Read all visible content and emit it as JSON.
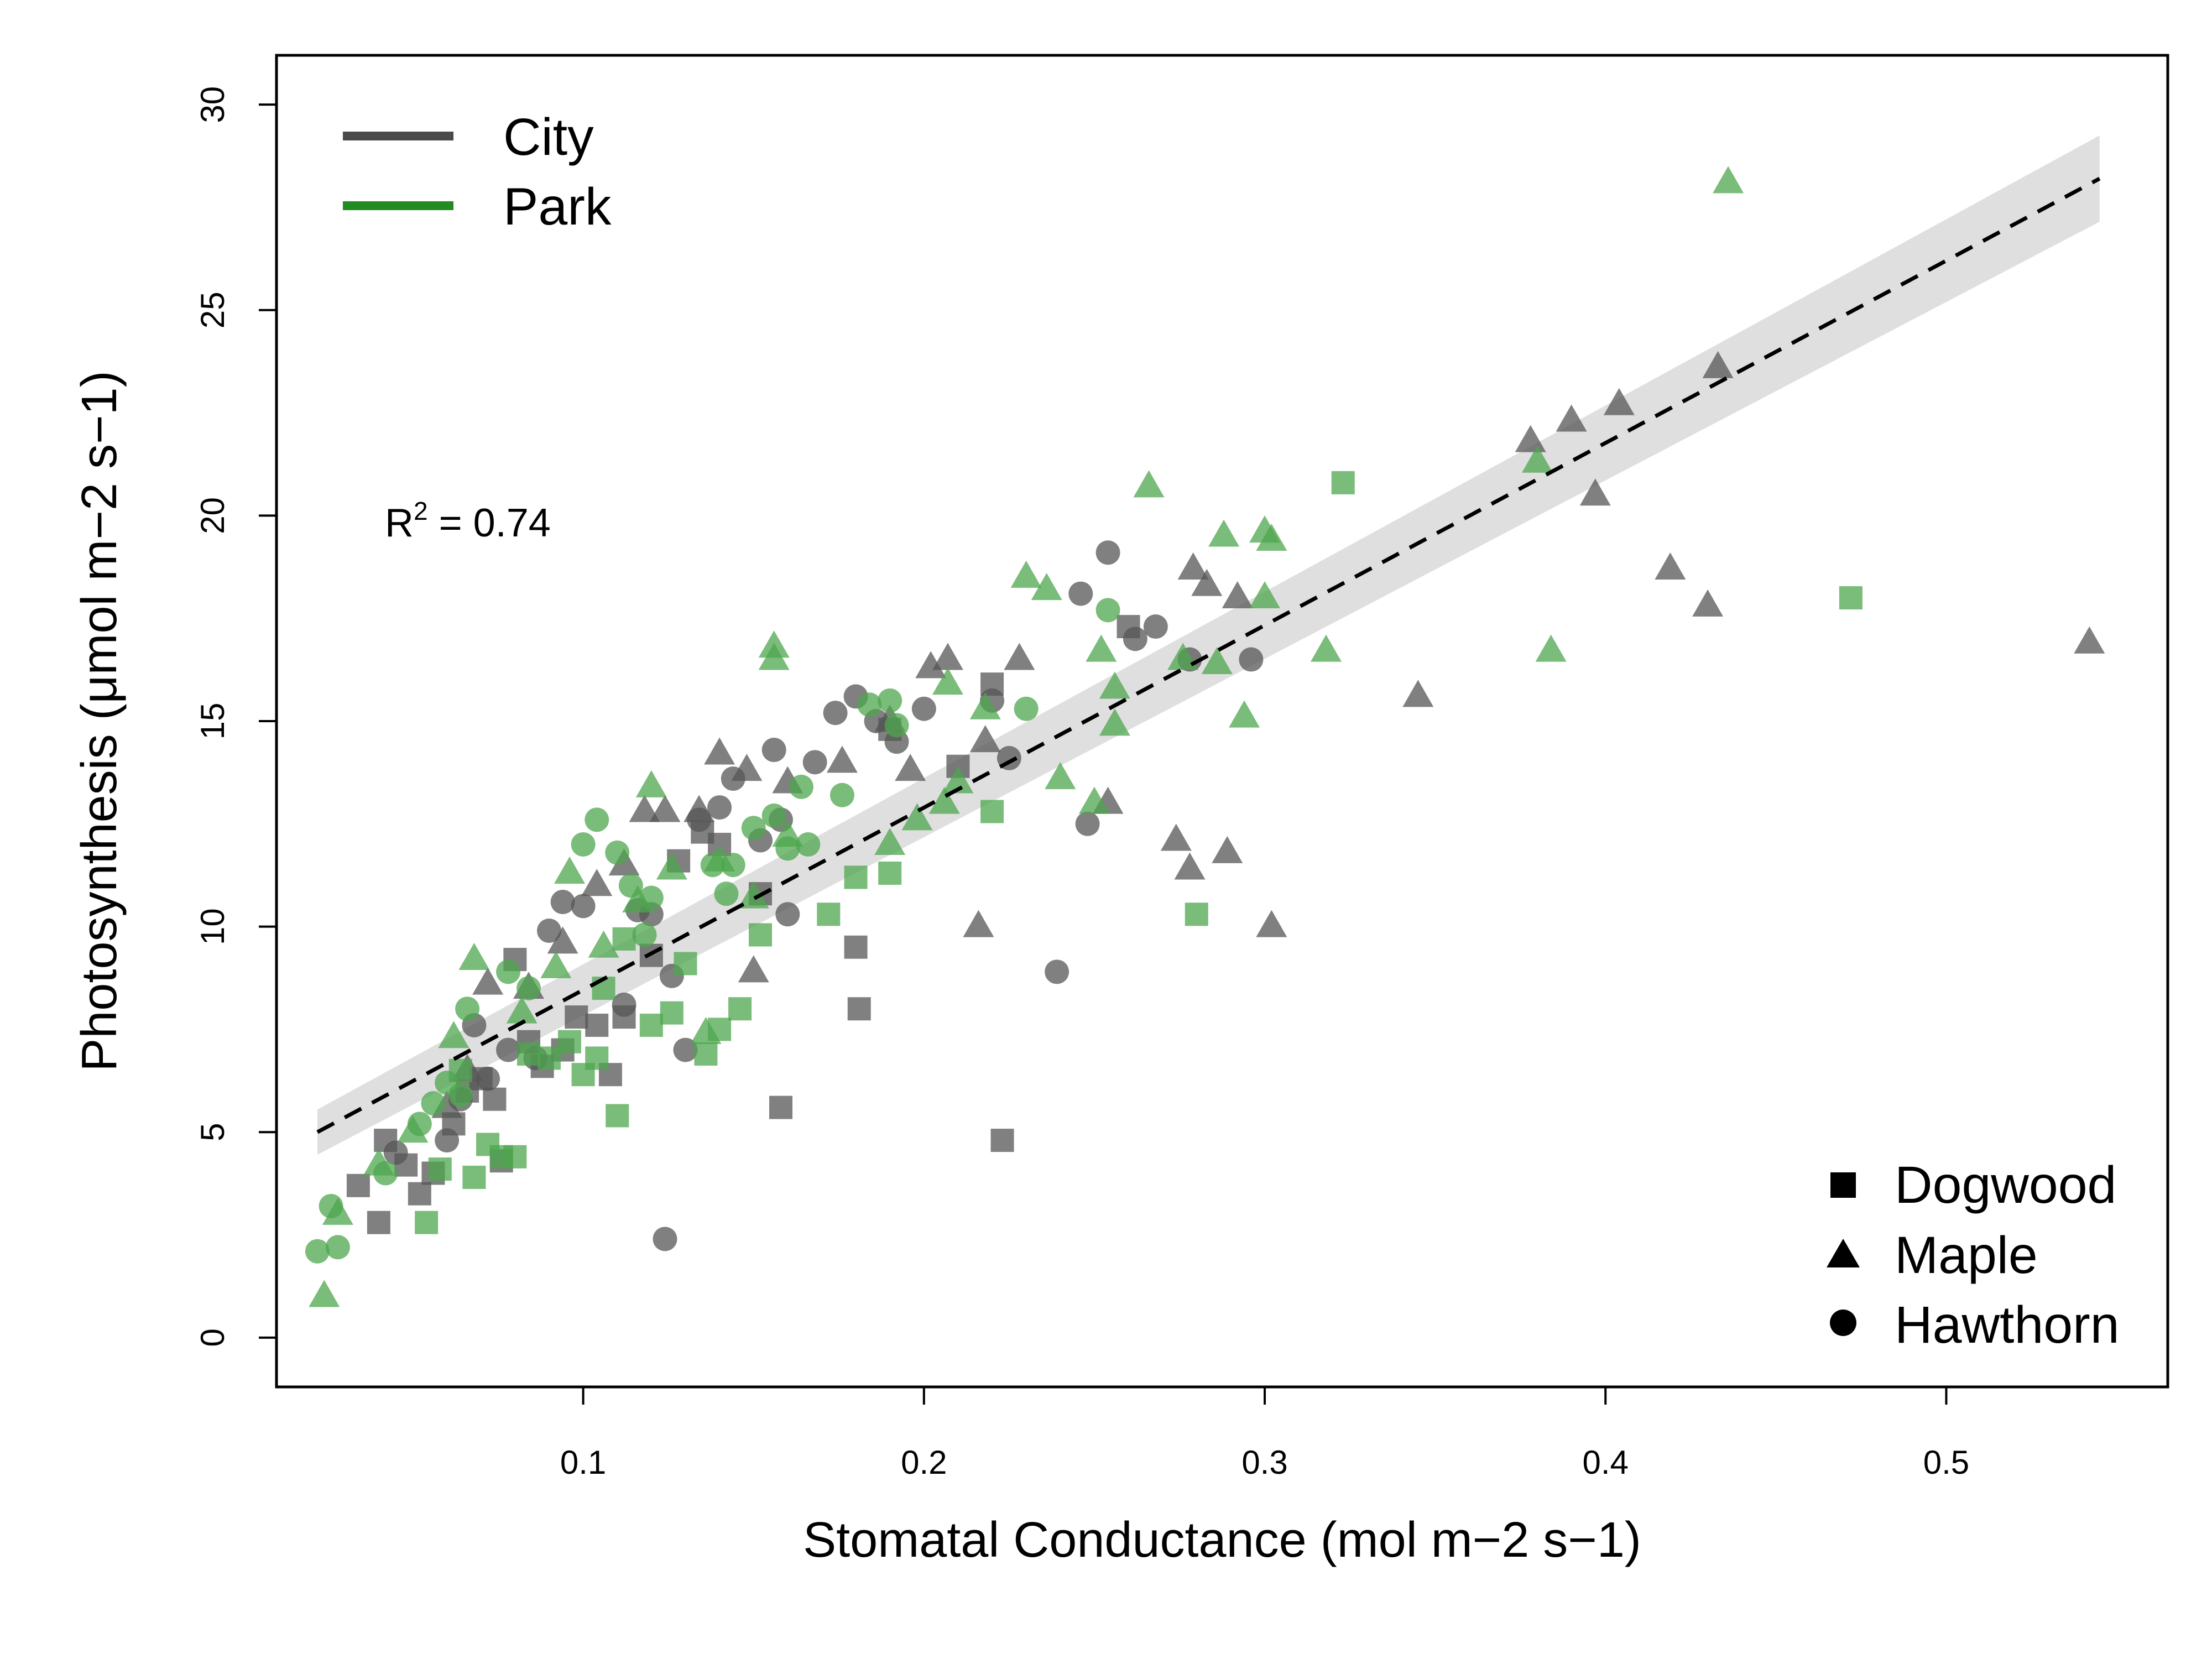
{
  "chart_data": {
    "type": "scatter",
    "xlabel": "Stomatal Conductance  (mol m−2 s−1)",
    "ylabel": "Photosynthesis  (μmol m−2 s−1)",
    "xlim": [
      0.01,
      0.565
    ],
    "ylim": [
      -1.2,
      31.2
    ],
    "xticks": [
      0.1,
      0.2,
      0.3,
      0.4,
      0.5
    ],
    "yticks": [
      0,
      5,
      10,
      15,
      20,
      25,
      30
    ],
    "xtick_labels": [
      "0.1",
      "0.2",
      "0.3",
      "0.4",
      "0.5"
    ],
    "ytick_labels": [
      "0",
      "5",
      "10",
      "15",
      "20",
      "25",
      "30"
    ],
    "grid": false,
    "annotation": {
      "label": "R",
      "sup": "2",
      "rest": " =  0.74"
    },
    "fit_line": {
      "x": [
        0.022,
        0.545
      ],
      "y": [
        5.0,
        28.2
      ],
      "style": "dashed",
      "ci_half_width": [
        0.55,
        1.05
      ]
    },
    "legend_sites": {
      "placement": "top-left",
      "entries": [
        {
          "label": "City",
          "color": "#4a4a4a"
        },
        {
          "label": "Park",
          "color": "#228b22"
        }
      ]
    },
    "legend_species": {
      "placement": "bottom-right",
      "entries": [
        {
          "label": "Dogwood",
          "shape": "square"
        },
        {
          "label": "Maple",
          "shape": "triangle"
        },
        {
          "label": "Hawthorn",
          "shape": "circle"
        }
      ]
    },
    "colors": {
      "City": "#555555",
      "Park": "#4ea64e",
      "band": "#d9d9d9",
      "line": "#000000"
    },
    "series": [
      {
        "site": "City",
        "species": "Dogwood",
        "points": [
          [
            0.034,
            3.7
          ],
          [
            0.04,
            2.8
          ],
          [
            0.042,
            4.8
          ],
          [
            0.048,
            4.2
          ],
          [
            0.052,
            3.5
          ],
          [
            0.056,
            4.0
          ],
          [
            0.062,
            5.2
          ],
          [
            0.066,
            6.0
          ],
          [
            0.07,
            6.3
          ],
          [
            0.074,
            5.8
          ],
          [
            0.076,
            4.3
          ],
          [
            0.08,
            9.2
          ],
          [
            0.084,
            7.2
          ],
          [
            0.088,
            6.6
          ],
          [
            0.094,
            7.0
          ],
          [
            0.098,
            7.8
          ],
          [
            0.104,
            7.6
          ],
          [
            0.108,
            6.4
          ],
          [
            0.112,
            7.8
          ],
          [
            0.12,
            9.3
          ],
          [
            0.128,
            11.6
          ],
          [
            0.135,
            12.3
          ],
          [
            0.14,
            12.0
          ],
          [
            0.152,
            10.8
          ],
          [
            0.158,
            5.6
          ],
          [
            0.18,
            9.5
          ],
          [
            0.181,
            8.0
          ],
          [
            0.19,
            14.8
          ],
          [
            0.21,
            13.9
          ],
          [
            0.22,
            15.9
          ],
          [
            0.223,
            4.8
          ],
          [
            0.26,
            17.3
          ]
        ]
      },
      {
        "site": "City",
        "species": "Maple",
        "points": [
          [
            0.06,
            5.6
          ],
          [
            0.066,
            6.5
          ],
          [
            0.072,
            8.6
          ],
          [
            0.084,
            8.5
          ],
          [
            0.094,
            9.6
          ],
          [
            0.104,
            11.0
          ],
          [
            0.112,
            11.5
          ],
          [
            0.118,
            12.8
          ],
          [
            0.124,
            12.8
          ],
          [
            0.134,
            12.8
          ],
          [
            0.14,
            14.2
          ],
          [
            0.148,
            13.8
          ],
          [
            0.15,
            8.9
          ],
          [
            0.16,
            13.5
          ],
          [
            0.176,
            14.0
          ],
          [
            0.19,
            15.0
          ],
          [
            0.196,
            13.8
          ],
          [
            0.202,
            16.3
          ],
          [
            0.207,
            16.5
          ],
          [
            0.216,
            10.0
          ],
          [
            0.218,
            14.5
          ],
          [
            0.228,
            16.5
          ],
          [
            0.254,
            13.0
          ],
          [
            0.274,
            12.1
          ],
          [
            0.278,
            11.4
          ],
          [
            0.279,
            18.7
          ],
          [
            0.283,
            18.3
          ],
          [
            0.289,
            11.8
          ],
          [
            0.292,
            18.0
          ],
          [
            0.302,
            10.0
          ],
          [
            0.345,
            15.6
          ],
          [
            0.378,
            21.8
          ],
          [
            0.39,
            22.3
          ],
          [
            0.397,
            20.5
          ],
          [
            0.404,
            22.7
          ],
          [
            0.419,
            18.7
          ],
          [
            0.43,
            17.8
          ],
          [
            0.433,
            23.6
          ],
          [
            0.542,
            16.9
          ]
        ]
      },
      {
        "site": "City",
        "species": "Hawthorn",
        "points": [
          [
            0.045,
            4.5
          ],
          [
            0.06,
            4.8
          ],
          [
            0.064,
            5.8
          ],
          [
            0.068,
            7.6
          ],
          [
            0.072,
            6.3
          ],
          [
            0.078,
            7.0
          ],
          [
            0.086,
            6.8
          ],
          [
            0.09,
            9.9
          ],
          [
            0.094,
            10.6
          ],
          [
            0.1,
            10.5
          ],
          [
            0.112,
            8.1
          ],
          [
            0.116,
            10.4
          ],
          [
            0.12,
            10.3
          ],
          [
            0.124,
            2.4
          ],
          [
            0.126,
            8.8
          ],
          [
            0.13,
            7.0
          ],
          [
            0.134,
            12.6
          ],
          [
            0.14,
            12.9
          ],
          [
            0.144,
            13.6
          ],
          [
            0.152,
            12.1
          ],
          [
            0.156,
            14.3
          ],
          [
            0.158,
            12.6
          ],
          [
            0.16,
            10.3
          ],
          [
            0.168,
            14.0
          ],
          [
            0.174,
            15.2
          ],
          [
            0.18,
            15.6
          ],
          [
            0.186,
            15.0
          ],
          [
            0.192,
            14.5
          ],
          [
            0.2,
            15.3
          ],
          [
            0.22,
            15.5
          ],
          [
            0.225,
            14.1
          ],
          [
            0.239,
            8.9
          ],
          [
            0.246,
            18.1
          ],
          [
            0.248,
            12.5
          ],
          [
            0.254,
            19.1
          ],
          [
            0.262,
            17.0
          ],
          [
            0.268,
            17.3
          ],
          [
            0.278,
            16.5
          ],
          [
            0.296,
            16.5
          ]
        ]
      },
      {
        "site": "Park",
        "species": "Dogwood",
        "points": [
          [
            0.054,
            2.8
          ],
          [
            0.058,
            4.1
          ],
          [
            0.064,
            6.5
          ],
          [
            0.068,
            3.9
          ],
          [
            0.072,
            4.7
          ],
          [
            0.076,
            4.4
          ],
          [
            0.08,
            4.4
          ],
          [
            0.084,
            6.9
          ],
          [
            0.09,
            6.8
          ],
          [
            0.096,
            7.2
          ],
          [
            0.1,
            6.4
          ],
          [
            0.104,
            6.8
          ],
          [
            0.106,
            8.5
          ],
          [
            0.11,
            5.4
          ],
          [
            0.112,
            9.7
          ],
          [
            0.12,
            7.6
          ],
          [
            0.126,
            7.9
          ],
          [
            0.13,
            9.1
          ],
          [
            0.136,
            6.9
          ],
          [
            0.14,
            7.5
          ],
          [
            0.146,
            8.0
          ],
          [
            0.152,
            9.8
          ],
          [
            0.172,
            10.3
          ],
          [
            0.18,
            11.2
          ],
          [
            0.19,
            11.3
          ],
          [
            0.22,
            12.8
          ],
          [
            0.28,
            10.3
          ],
          [
            0.323,
            20.8
          ],
          [
            0.472,
            18.0
          ]
        ]
      },
      {
        "site": "Park",
        "species": "Maple",
        "points": [
          [
            0.024,
            1.0
          ],
          [
            0.028,
            3.0
          ],
          [
            0.04,
            4.2
          ],
          [
            0.05,
            5.0
          ],
          [
            0.062,
            7.3
          ],
          [
            0.068,
            9.2
          ],
          [
            0.082,
            7.9
          ],
          [
            0.092,
            9.0
          ],
          [
            0.096,
            11.3
          ],
          [
            0.106,
            9.5
          ],
          [
            0.116,
            10.6
          ],
          [
            0.12,
            13.4
          ],
          [
            0.126,
            11.4
          ],
          [
            0.136,
            7.4
          ],
          [
            0.14,
            11.6
          ],
          [
            0.15,
            10.7
          ],
          [
            0.156,
            16.5
          ],
          [
            0.156,
            16.8
          ],
          [
            0.16,
            12.2
          ],
          [
            0.19,
            12.0
          ],
          [
            0.198,
            12.6
          ],
          [
            0.206,
            13.0
          ],
          [
            0.207,
            15.9
          ],
          [
            0.21,
            13.5
          ],
          [
            0.218,
            15.3
          ],
          [
            0.23,
            18.5
          ],
          [
            0.236,
            18.2
          ],
          [
            0.24,
            13.6
          ],
          [
            0.25,
            13.0
          ],
          [
            0.252,
            16.7
          ],
          [
            0.256,
            15.8
          ],
          [
            0.256,
            14.9
          ],
          [
            0.266,
            20.7
          ],
          [
            0.276,
            16.5
          ],
          [
            0.286,
            16.4
          ],
          [
            0.288,
            19.5
          ],
          [
            0.294,
            15.1
          ],
          [
            0.3,
            18.0
          ],
          [
            0.3,
            19.6
          ],
          [
            0.302,
            19.4
          ],
          [
            0.318,
            16.7
          ],
          [
            0.38,
            21.3
          ],
          [
            0.384,
            16.7
          ],
          [
            0.436,
            28.1
          ]
        ]
      },
      {
        "site": "Park",
        "species": "Hawthorn",
        "points": [
          [
            0.022,
            2.1
          ],
          [
            0.026,
            3.2
          ],
          [
            0.028,
            2.2
          ],
          [
            0.042,
            4.0
          ],
          [
            0.052,
            5.2
          ],
          [
            0.056,
            5.7
          ],
          [
            0.06,
            6.2
          ],
          [
            0.064,
            5.9
          ],
          [
            0.066,
            8.0
          ],
          [
            0.078,
            8.9
          ],
          [
            0.084,
            8.5
          ],
          [
            0.1,
            12.0
          ],
          [
            0.104,
            12.6
          ],
          [
            0.11,
            11.8
          ],
          [
            0.114,
            11.0
          ],
          [
            0.118,
            9.8
          ],
          [
            0.12,
            10.7
          ],
          [
            0.138,
            11.5
          ],
          [
            0.142,
            10.8
          ],
          [
            0.144,
            11.5
          ],
          [
            0.15,
            12.4
          ],
          [
            0.156,
            12.7
          ],
          [
            0.16,
            11.9
          ],
          [
            0.164,
            13.4
          ],
          [
            0.166,
            12.0
          ],
          [
            0.176,
            13.2
          ],
          [
            0.184,
            15.4
          ],
          [
            0.19,
            15.5
          ],
          [
            0.192,
            14.9
          ],
          [
            0.23,
            15.3
          ],
          [
            0.254,
            17.7
          ]
        ]
      }
    ]
  }
}
